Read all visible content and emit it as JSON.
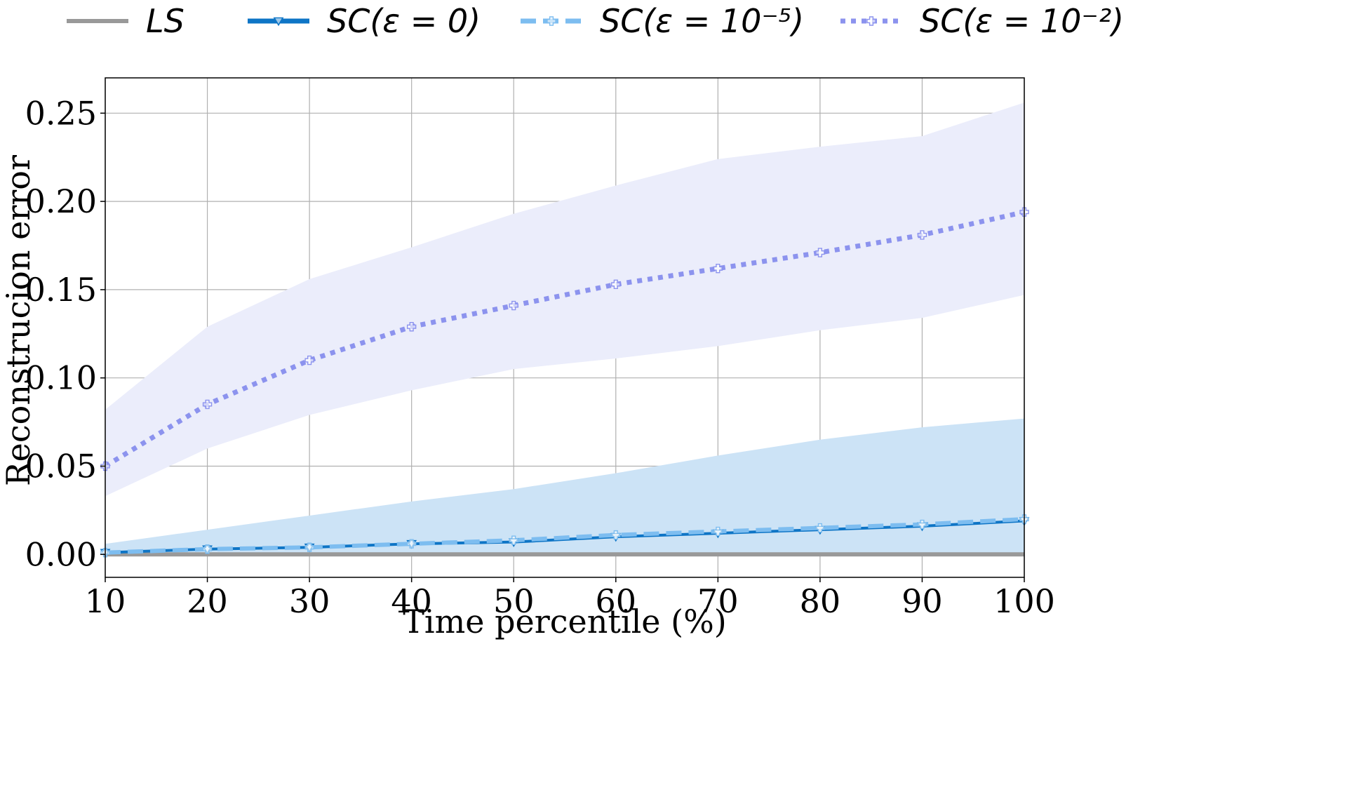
{
  "chart_data": {
    "type": "line",
    "title": "",
    "xlabel": "Time percentile (%)",
    "ylabel": "Reconstrucion error",
    "xlim": [
      10,
      100
    ],
    "ylim": [
      -0.013,
      0.27
    ],
    "grid": true,
    "legend_position": "top",
    "x": [
      10,
      20,
      30,
      40,
      50,
      60,
      70,
      80,
      90,
      100
    ],
    "x_ticks": [
      "10",
      "20",
      "30",
      "40",
      "50",
      "60",
      "70",
      "80",
      "90",
      "100"
    ],
    "y_ticks": [
      {
        "value": 0.0,
        "label": "0.00"
      },
      {
        "value": 0.05,
        "label": "0.05"
      },
      {
        "value": 0.1,
        "label": "0.10"
      },
      {
        "value": 0.15,
        "label": "0.15"
      },
      {
        "value": 0.2,
        "label": "0.20"
      },
      {
        "value": 0.25,
        "label": "0.25"
      }
    ],
    "series": [
      {
        "name": "LS",
        "legend_label": "LS",
        "color": "#999999",
        "style": "solid",
        "marker": "none",
        "values": [
          0,
          0,
          0,
          0,
          0,
          0,
          0,
          0,
          0,
          0
        ],
        "band_low": null,
        "band_high": null
      },
      {
        "name": "SC(eps=0)",
        "legend_label": "SC(ε = 0)",
        "color": "#0e75c6",
        "style": "solid",
        "marker": "triangle-down",
        "values": [
          0.001,
          0.003,
          0.004,
          0.006,
          0.007,
          0.01,
          0.012,
          0.014,
          0.016,
          0.019
        ],
        "band_low": [
          0,
          0,
          0,
          0,
          0,
          0,
          0,
          0,
          0,
          0
        ],
        "band_high": [
          0.006,
          0.014,
          0.022,
          0.03,
          0.037,
          0.046,
          0.056,
          0.065,
          0.072,
          0.077
        ],
        "band_color": "#cce3f6"
      },
      {
        "name": "SC(eps=1e-5)",
        "legend_label": "SC(ε = 10⁻⁵)",
        "color": "#7dbdf0",
        "style": "dashed",
        "marker": "plus",
        "values": [
          0.001,
          0.003,
          0.004,
          0.006,
          0.008,
          0.011,
          0.013,
          0.015,
          0.017,
          0.02
        ],
        "band_low": null,
        "band_high": null
      },
      {
        "name": "SC(eps=1e-2)",
        "legend_label": "SC(ε = 10⁻²)",
        "color": "#8c93ee",
        "style": "dotted",
        "marker": "plus",
        "values": [
          0.05,
          0.085,
          0.11,
          0.129,
          0.141,
          0.153,
          0.162,
          0.171,
          0.181,
          0.194
        ],
        "band_low": [
          0.033,
          0.06,
          0.079,
          0.093,
          0.105,
          0.111,
          0.118,
          0.127,
          0.134,
          0.147
        ],
        "band_high": [
          0.082,
          0.129,
          0.156,
          0.174,
          0.193,
          0.209,
          0.224,
          0.231,
          0.237,
          0.256
        ],
        "band_color": "#ebedfb"
      }
    ]
  }
}
